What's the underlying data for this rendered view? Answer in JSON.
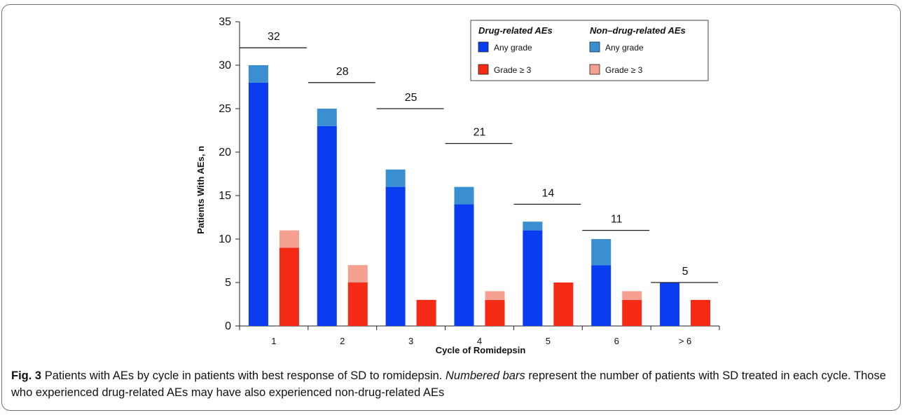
{
  "chart_data": {
    "type": "bar",
    "stacked": true,
    "xlabel": "Cycle of Romidepsin",
    "ylabel": "Patients With AEs, n",
    "ylim": [
      0,
      35
    ],
    "yticks": [
      0,
      5,
      10,
      15,
      20,
      25,
      30,
      35
    ],
    "categories": [
      "1",
      "2",
      "3",
      "4",
      "5",
      "6",
      "> 6"
    ],
    "totals": [
      32,
      28,
      25,
      21,
      14,
      11,
      5
    ],
    "groups": [
      {
        "name": "Any grade",
        "series": [
          {
            "key": "drug_any",
            "values": [
              28,
              23,
              16,
              14,
              11,
              7,
              5
            ],
            "color": "#0a3cf0"
          },
          {
            "key": "nondrug_any",
            "values": [
              2,
              2,
              2,
              2,
              1,
              3,
              0
            ],
            "color": "#3a8fd0"
          }
        ]
      },
      {
        "name": "Grade ≥ 3",
        "series": [
          {
            "key": "drug_g3",
            "values": [
              9,
              5,
              3,
              3,
              5,
              3,
              3
            ],
            "color": "#f52a14"
          },
          {
            "key": "nondrug_g3",
            "values": [
              2,
              2,
              0,
              1,
              0,
              1,
              0
            ],
            "color": "#f5a090"
          }
        ]
      }
    ],
    "legend": {
      "placement": "top-right",
      "headers": [
        "Drug-related AEs",
        "Non–drug-related AEs"
      ],
      "entries": [
        {
          "label": "Any grade",
          "color": "#0a3cf0"
        },
        {
          "label": "Grade ≥ 3",
          "color": "#f52a14"
        },
        {
          "label": "Any grade",
          "color": "#3a8fd0"
        },
        {
          "label": "Grade ≥ 3",
          "color": "#f5a090"
        }
      ]
    }
  },
  "caption": {
    "label": "Fig. 3",
    "text1": "Patients with AEs by cycle in patients with best response of SD to romidepsin.",
    "italic": "Numbered bars",
    "text2": "represent the number of patients with SD treated in each cycle. Those who experienced drug-related AEs may have also experienced non-drug-related AEs"
  }
}
